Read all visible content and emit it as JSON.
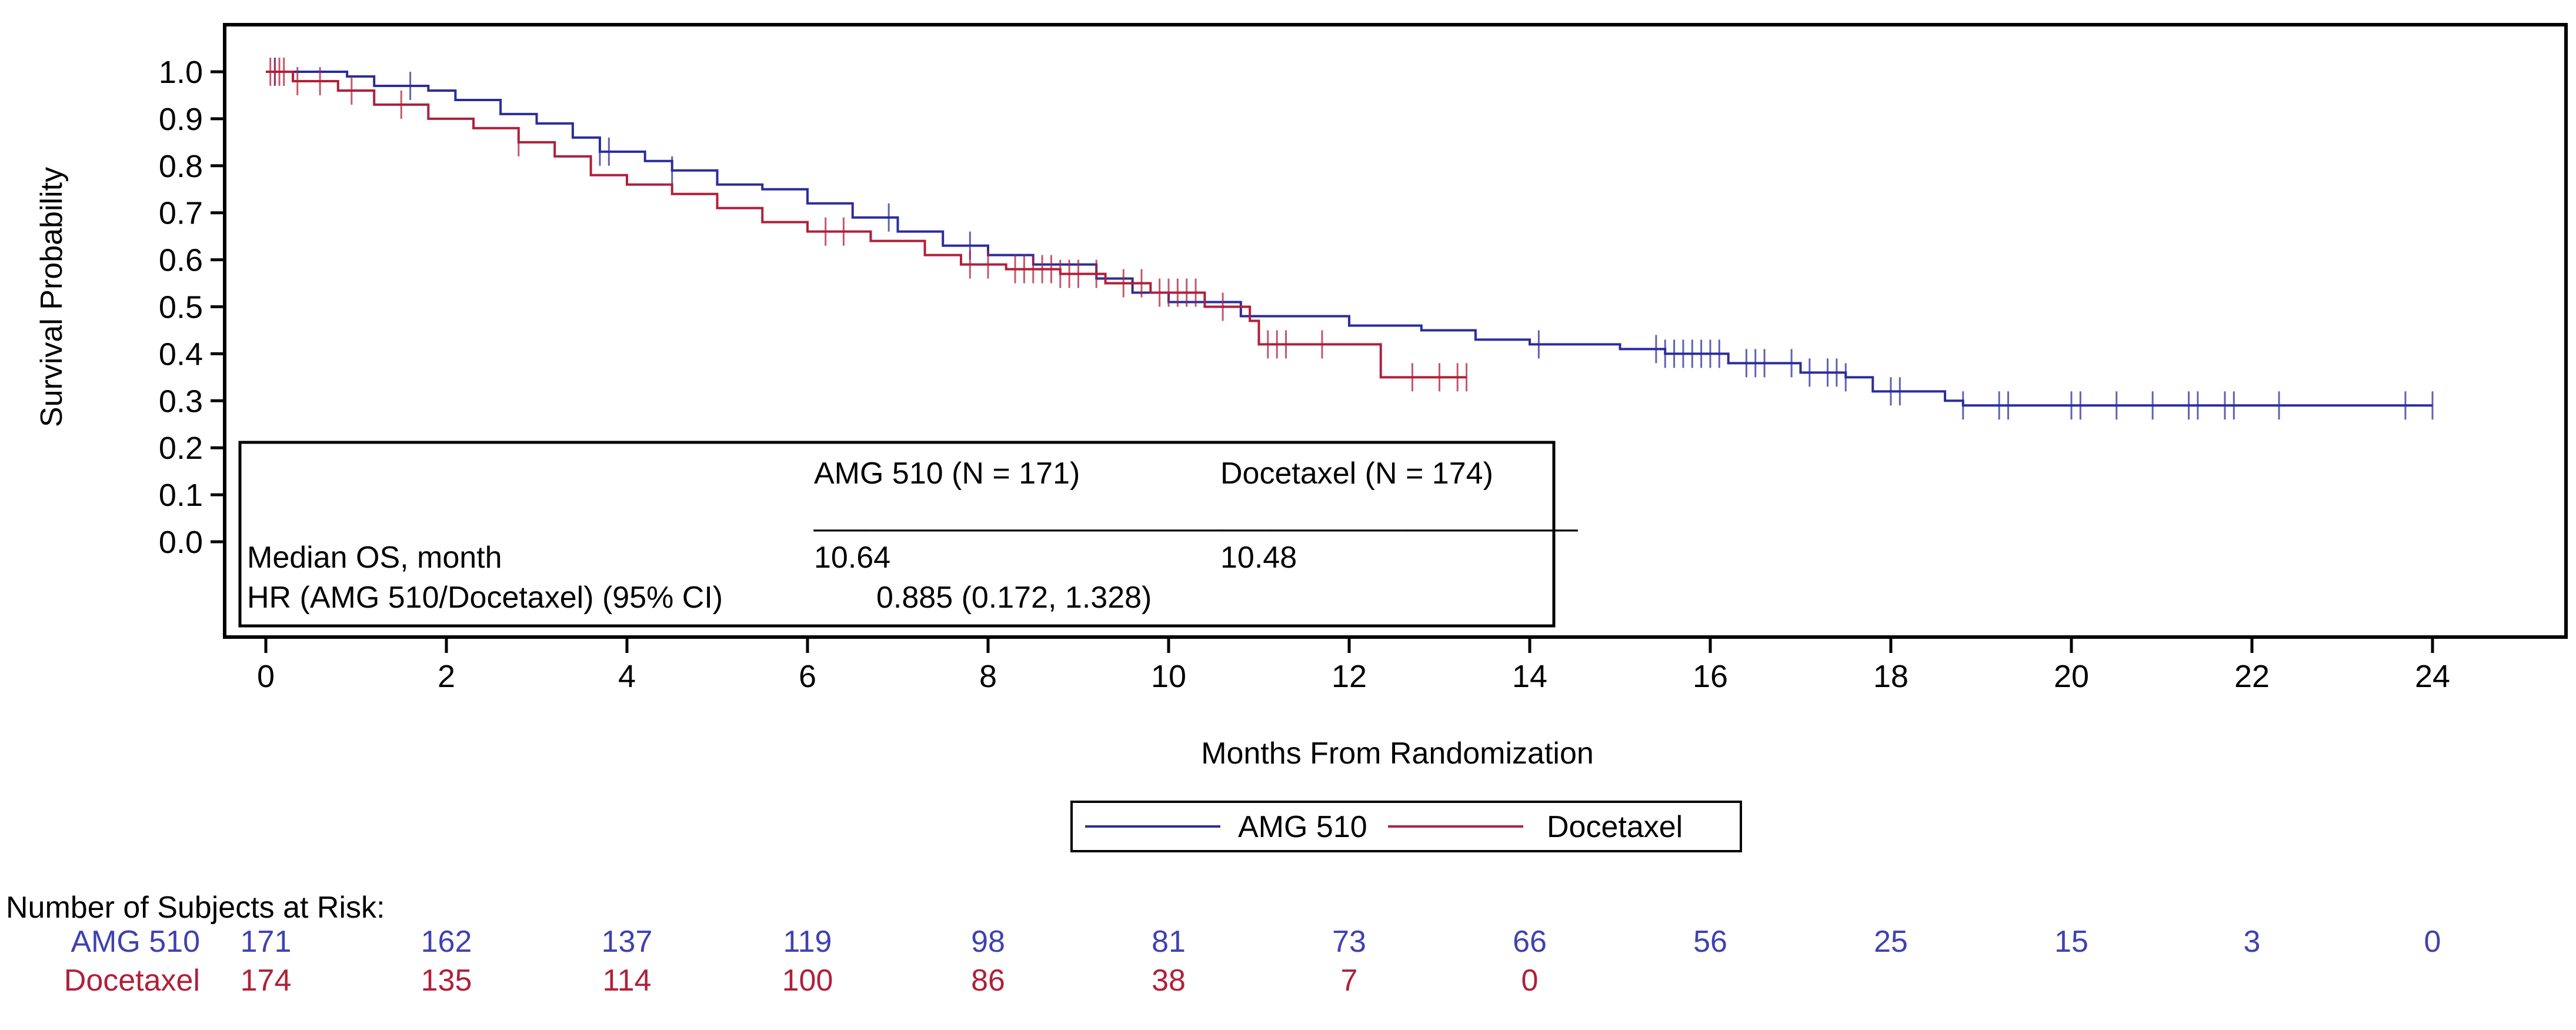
{
  "chart_data": {
    "type": "line",
    "subtype": "kaplan-meier step",
    "xlabel": "Months From Randomization",
    "ylabel": "Survival Probability",
    "xlim": [
      0,
      24
    ],
    "ylim": [
      0.0,
      1.0
    ],
    "xticks": [
      "0",
      "2",
      "4",
      "6",
      "8",
      "10",
      "12",
      "14",
      "16",
      "18",
      "20",
      "22",
      "24"
    ],
    "yticks": [
      "0.0",
      "0.1",
      "0.2",
      "0.3",
      "0.4",
      "0.5",
      "0.6",
      "0.7",
      "0.8",
      "0.9",
      "1.0"
    ],
    "grid": false,
    "legend_placement": "bottom-center",
    "series": [
      {
        "name": "AMG 510",
        "color": "#2b2d9b",
        "steps": [
          [
            0,
            1.0
          ],
          [
            0.9,
            0.99
          ],
          [
            1.2,
            0.97
          ],
          [
            1.8,
            0.96
          ],
          [
            2.1,
            0.94
          ],
          [
            2.6,
            0.91
          ],
          [
            3.0,
            0.89
          ],
          [
            3.4,
            0.86
          ],
          [
            3.7,
            0.83
          ],
          [
            4.2,
            0.81
          ],
          [
            4.5,
            0.79
          ],
          [
            5.0,
            0.76
          ],
          [
            5.5,
            0.75
          ],
          [
            6.0,
            0.72
          ],
          [
            6.5,
            0.69
          ],
          [
            7.0,
            0.66
          ],
          [
            7.5,
            0.63
          ],
          [
            8.0,
            0.61
          ],
          [
            8.5,
            0.59
          ],
          [
            9.2,
            0.56
          ],
          [
            9.6,
            0.53
          ],
          [
            10.0,
            0.51
          ],
          [
            10.8,
            0.48
          ],
          [
            12.0,
            0.46
          ],
          [
            12.8,
            0.45
          ],
          [
            13.4,
            0.43
          ],
          [
            14.0,
            0.42
          ],
          [
            15.0,
            0.41
          ],
          [
            15.5,
            0.4
          ],
          [
            16.2,
            0.38
          ],
          [
            17.0,
            0.36
          ],
          [
            17.5,
            0.35
          ],
          [
            17.8,
            0.32
          ],
          [
            18.6,
            0.3
          ],
          [
            18.8,
            0.29
          ]
        ],
        "end": 24.0,
        "censored": [
          0.1,
          1.6,
          3.7,
          3.8,
          4.5,
          6.9,
          7.8,
          14.1,
          15.4,
          15.5,
          15.6,
          15.7,
          15.8,
          15.9,
          16.0,
          16.1,
          16.4,
          16.5,
          16.6,
          16.9,
          17.1,
          17.3,
          17.4,
          17.5,
          18.0,
          18.1,
          18.8,
          19.2,
          19.3,
          20.0,
          20.1,
          20.5,
          20.9,
          21.3,
          21.4,
          21.7,
          21.8,
          22.3,
          23.7,
          24.0
        ]
      },
      {
        "name": "Docetaxel",
        "color": "#b0203a",
        "steps": [
          [
            0,
            1.0
          ],
          [
            0.3,
            0.98
          ],
          [
            0.8,
            0.96
          ],
          [
            1.2,
            0.93
          ],
          [
            1.8,
            0.9
          ],
          [
            2.3,
            0.88
          ],
          [
            2.8,
            0.85
          ],
          [
            3.2,
            0.82
          ],
          [
            3.6,
            0.78
          ],
          [
            4.0,
            0.76
          ],
          [
            4.5,
            0.74
          ],
          [
            5.0,
            0.71
          ],
          [
            5.5,
            0.68
          ],
          [
            6.0,
            0.66
          ],
          [
            6.7,
            0.64
          ],
          [
            7.3,
            0.61
          ],
          [
            7.7,
            0.59
          ],
          [
            8.2,
            0.58
          ],
          [
            8.8,
            0.57
          ],
          [
            9.3,
            0.55
          ],
          [
            9.8,
            0.53
          ],
          [
            10.4,
            0.5
          ],
          [
            10.9,
            0.47
          ],
          [
            11.0,
            0.42
          ],
          [
            12.3,
            0.42
          ],
          [
            12.35,
            0.35
          ]
        ],
        "end": 13.3,
        "censored": [
          0.05,
          0.1,
          0.15,
          0.2,
          0.35,
          0.6,
          0.95,
          1.5,
          2.8,
          6.2,
          6.4,
          7.8,
          8.0,
          8.3,
          8.4,
          8.5,
          8.6,
          8.7,
          8.8,
          8.9,
          9.0,
          9.2,
          9.5,
          9.7,
          9.9,
          10.0,
          10.1,
          10.2,
          10.3,
          10.6,
          11.1,
          11.2,
          11.3,
          11.7,
          12.7,
          13.0,
          13.2,
          13.3
        ]
      }
    ],
    "inset_table": {
      "col1_header": "AMG 510 (N = 171)",
      "col2_header": "Docetaxel (N = 174)",
      "rule": "________________________",
      "rule2": "_____________________",
      "row1_label": "Median OS, month",
      "row1_col1": "10.64",
      "row1_col2": "10.48",
      "row2_label": "HR (AMG 510/Docetaxel) (95% CI)",
      "row2_value": "0.885 (0.172, 1.328)"
    },
    "risk_table": {
      "title": "Number of Subjects at Risk:",
      "rows": [
        {
          "label": "AMG 510",
          "color": "#3f41b0",
          "values": [
            "171",
            "162",
            "137",
            "119",
            "98",
            "81",
            "73",
            "66",
            "56",
            "25",
            "15",
            "3",
            "0"
          ]
        },
        {
          "label": "Docetaxel",
          "color": "#b0203a",
          "values": [
            "174",
            "135",
            "114",
            "100",
            "86",
            "38",
            "7",
            "0"
          ]
        }
      ]
    }
  }
}
